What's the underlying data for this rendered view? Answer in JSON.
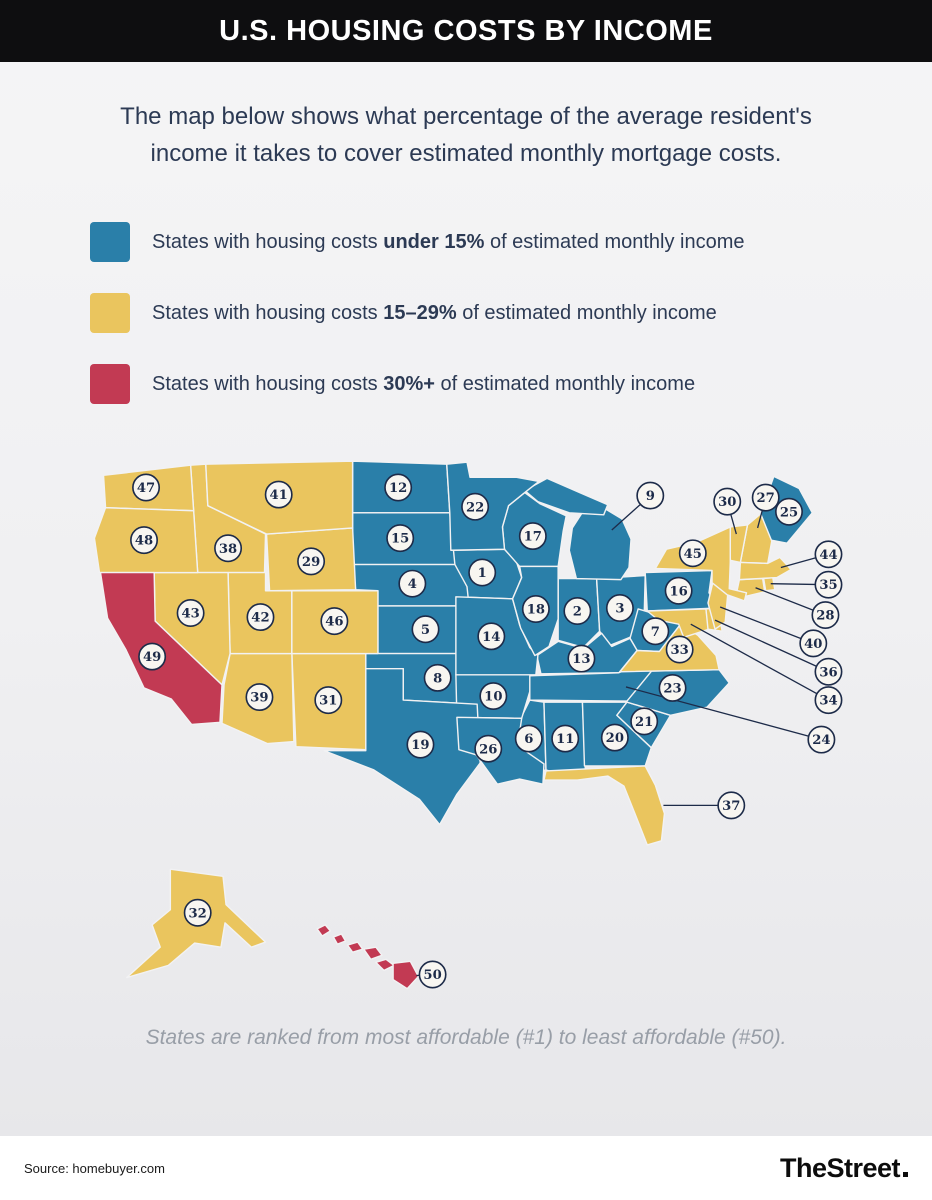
{
  "header": {
    "title": "U.S. HOUSING COSTS BY INCOME"
  },
  "subtitle": "The map below shows what percentage of the average resident's income it takes to cover estimated monthly mortgage costs.",
  "legend": {
    "items": [
      {
        "category": "under-15",
        "prefix": "States with housing costs ",
        "bold": "under 15%",
        "suffix": " of estimated monthly income"
      },
      {
        "category": "15-29",
        "prefix": "States with housing costs ",
        "bold": "15–29%",
        "suffix": " of estimated monthly income"
      },
      {
        "category": "30-plus",
        "prefix": "States with housing costs ",
        "bold": "30%+",
        "suffix": " of estimated monthly income"
      }
    ]
  },
  "caption": "States are ranked from most affordable (#1) to least affordable (#50).",
  "footer": {
    "source": "Source: homebuyer.com",
    "brand": "TheStreet"
  },
  "palette": {
    "circle_fill": "#f8f6f1",
    "circle_stroke": "#1d2b49",
    "callout_line": "#1d2b49",
    "state_border": "#f2f2f3",
    "header_bg": "#0e0e10",
    "header_text": "#ffffff",
    "body_text": "#2c3a54",
    "caption_text": "#989ea7"
  },
  "chart_data": {
    "type": "choropleth-map",
    "title": "U.S. Housing Costs by Income",
    "unit": "rank (1 = most affordable, 50 = least affordable)",
    "categories": [
      {
        "id": "under-15",
        "label": "States with housing costs under 15% of estimated monthly income",
        "color": "#2a7fa9"
      },
      {
        "id": "15-29",
        "label": "States with housing costs 15–29% of estimated monthly income",
        "color": "#eac55e"
      },
      {
        "id": "30-plus",
        "label": "States with housing costs 30%+ of estimated monthly income",
        "color": "#c23a53"
      }
    ],
    "states": [
      {
        "rank": 1,
        "name": "Iowa",
        "abbr": "IA",
        "category": "under-15"
      },
      {
        "rank": 2,
        "name": "Indiana",
        "abbr": "IN",
        "category": "under-15"
      },
      {
        "rank": 3,
        "name": "Ohio",
        "abbr": "OH",
        "category": "under-15"
      },
      {
        "rank": 4,
        "name": "Nebraska",
        "abbr": "NE",
        "category": "under-15"
      },
      {
        "rank": 5,
        "name": "Kansas",
        "abbr": "KS",
        "category": "under-15"
      },
      {
        "rank": 6,
        "name": "Mississippi",
        "abbr": "MS",
        "category": "under-15"
      },
      {
        "rank": 7,
        "name": "West Virginia",
        "abbr": "WV",
        "category": "under-15"
      },
      {
        "rank": 8,
        "name": "Oklahoma",
        "abbr": "OK",
        "category": "under-15"
      },
      {
        "rank": 9,
        "name": "Michigan",
        "abbr": "MI",
        "category": "under-15"
      },
      {
        "rank": 10,
        "name": "Arkansas",
        "abbr": "AR",
        "category": "under-15"
      },
      {
        "rank": 11,
        "name": "Alabama",
        "abbr": "AL",
        "category": "under-15"
      },
      {
        "rank": 12,
        "name": "North Dakota",
        "abbr": "ND",
        "category": "under-15"
      },
      {
        "rank": 13,
        "name": "Kentucky",
        "abbr": "KY",
        "category": "under-15"
      },
      {
        "rank": 14,
        "name": "Missouri",
        "abbr": "MO",
        "category": "under-15"
      },
      {
        "rank": 15,
        "name": "South Dakota",
        "abbr": "SD",
        "category": "under-15"
      },
      {
        "rank": 16,
        "name": "Pennsylvania",
        "abbr": "PA",
        "category": "under-15"
      },
      {
        "rank": 17,
        "name": "Wisconsin",
        "abbr": "WI",
        "category": "under-15"
      },
      {
        "rank": 18,
        "name": "Illinois",
        "abbr": "IL",
        "category": "under-15"
      },
      {
        "rank": 19,
        "name": "Texas",
        "abbr": "TX",
        "category": "under-15"
      },
      {
        "rank": 20,
        "name": "Georgia",
        "abbr": "GA",
        "category": "under-15"
      },
      {
        "rank": 21,
        "name": "South Carolina",
        "abbr": "SC",
        "category": "under-15"
      },
      {
        "rank": 22,
        "name": "Minnesota",
        "abbr": "MN",
        "category": "under-15"
      },
      {
        "rank": 23,
        "name": "North Carolina",
        "abbr": "NC",
        "category": "under-15"
      },
      {
        "rank": 24,
        "name": "Tennessee",
        "abbr": "TN",
        "category": "under-15"
      },
      {
        "rank": 25,
        "name": "Maine",
        "abbr": "ME",
        "category": "under-15"
      },
      {
        "rank": 26,
        "name": "Louisiana",
        "abbr": "LA",
        "category": "under-15"
      },
      {
        "rank": 27,
        "name": "New Hampshire",
        "abbr": "NH",
        "category": "15-29"
      },
      {
        "rank": 28,
        "name": "Connecticut",
        "abbr": "CT",
        "category": "15-29"
      },
      {
        "rank": 29,
        "name": "Wyoming",
        "abbr": "WY",
        "category": "15-29"
      },
      {
        "rank": 30,
        "name": "Vermont",
        "abbr": "VT",
        "category": "15-29"
      },
      {
        "rank": 31,
        "name": "New Mexico",
        "abbr": "NM",
        "category": "15-29"
      },
      {
        "rank": 32,
        "name": "Alaska",
        "abbr": "AK",
        "category": "15-29"
      },
      {
        "rank": 33,
        "name": "Virginia",
        "abbr": "VA",
        "category": "15-29"
      },
      {
        "rank": 34,
        "name": "Maryland",
        "abbr": "MD",
        "category": "15-29"
      },
      {
        "rank": 35,
        "name": "Rhode Island",
        "abbr": "RI",
        "category": "15-29"
      },
      {
        "rank": 36,
        "name": "Delaware",
        "abbr": "DE",
        "category": "15-29"
      },
      {
        "rank": 37,
        "name": "Florida",
        "abbr": "FL",
        "category": "15-29"
      },
      {
        "rank": 38,
        "name": "Idaho",
        "abbr": "ID",
        "category": "15-29"
      },
      {
        "rank": 39,
        "name": "Arizona",
        "abbr": "AZ",
        "category": "15-29"
      },
      {
        "rank": 40,
        "name": "New Jersey",
        "abbr": "NJ",
        "category": "15-29"
      },
      {
        "rank": 41,
        "name": "Montana",
        "abbr": "MT",
        "category": "15-29"
      },
      {
        "rank": 42,
        "name": "Utah",
        "abbr": "UT",
        "category": "15-29"
      },
      {
        "rank": 43,
        "name": "Nevada",
        "abbr": "NV",
        "category": "15-29"
      },
      {
        "rank": 44,
        "name": "Massachusetts",
        "abbr": "MA",
        "category": "15-29"
      },
      {
        "rank": 45,
        "name": "New York",
        "abbr": "NY",
        "category": "15-29"
      },
      {
        "rank": 46,
        "name": "Colorado",
        "abbr": "CO",
        "category": "15-29"
      },
      {
        "rank": 47,
        "name": "Washington",
        "abbr": "WA",
        "category": "15-29"
      },
      {
        "rank": 48,
        "name": "Oregon",
        "abbr": "OR",
        "category": "15-29"
      },
      {
        "rank": 49,
        "name": "California",
        "abbr": "CA",
        "category": "30-plus"
      },
      {
        "rank": 50,
        "name": "Hawaii",
        "abbr": "HI",
        "category": "30-plus"
      }
    ]
  }
}
